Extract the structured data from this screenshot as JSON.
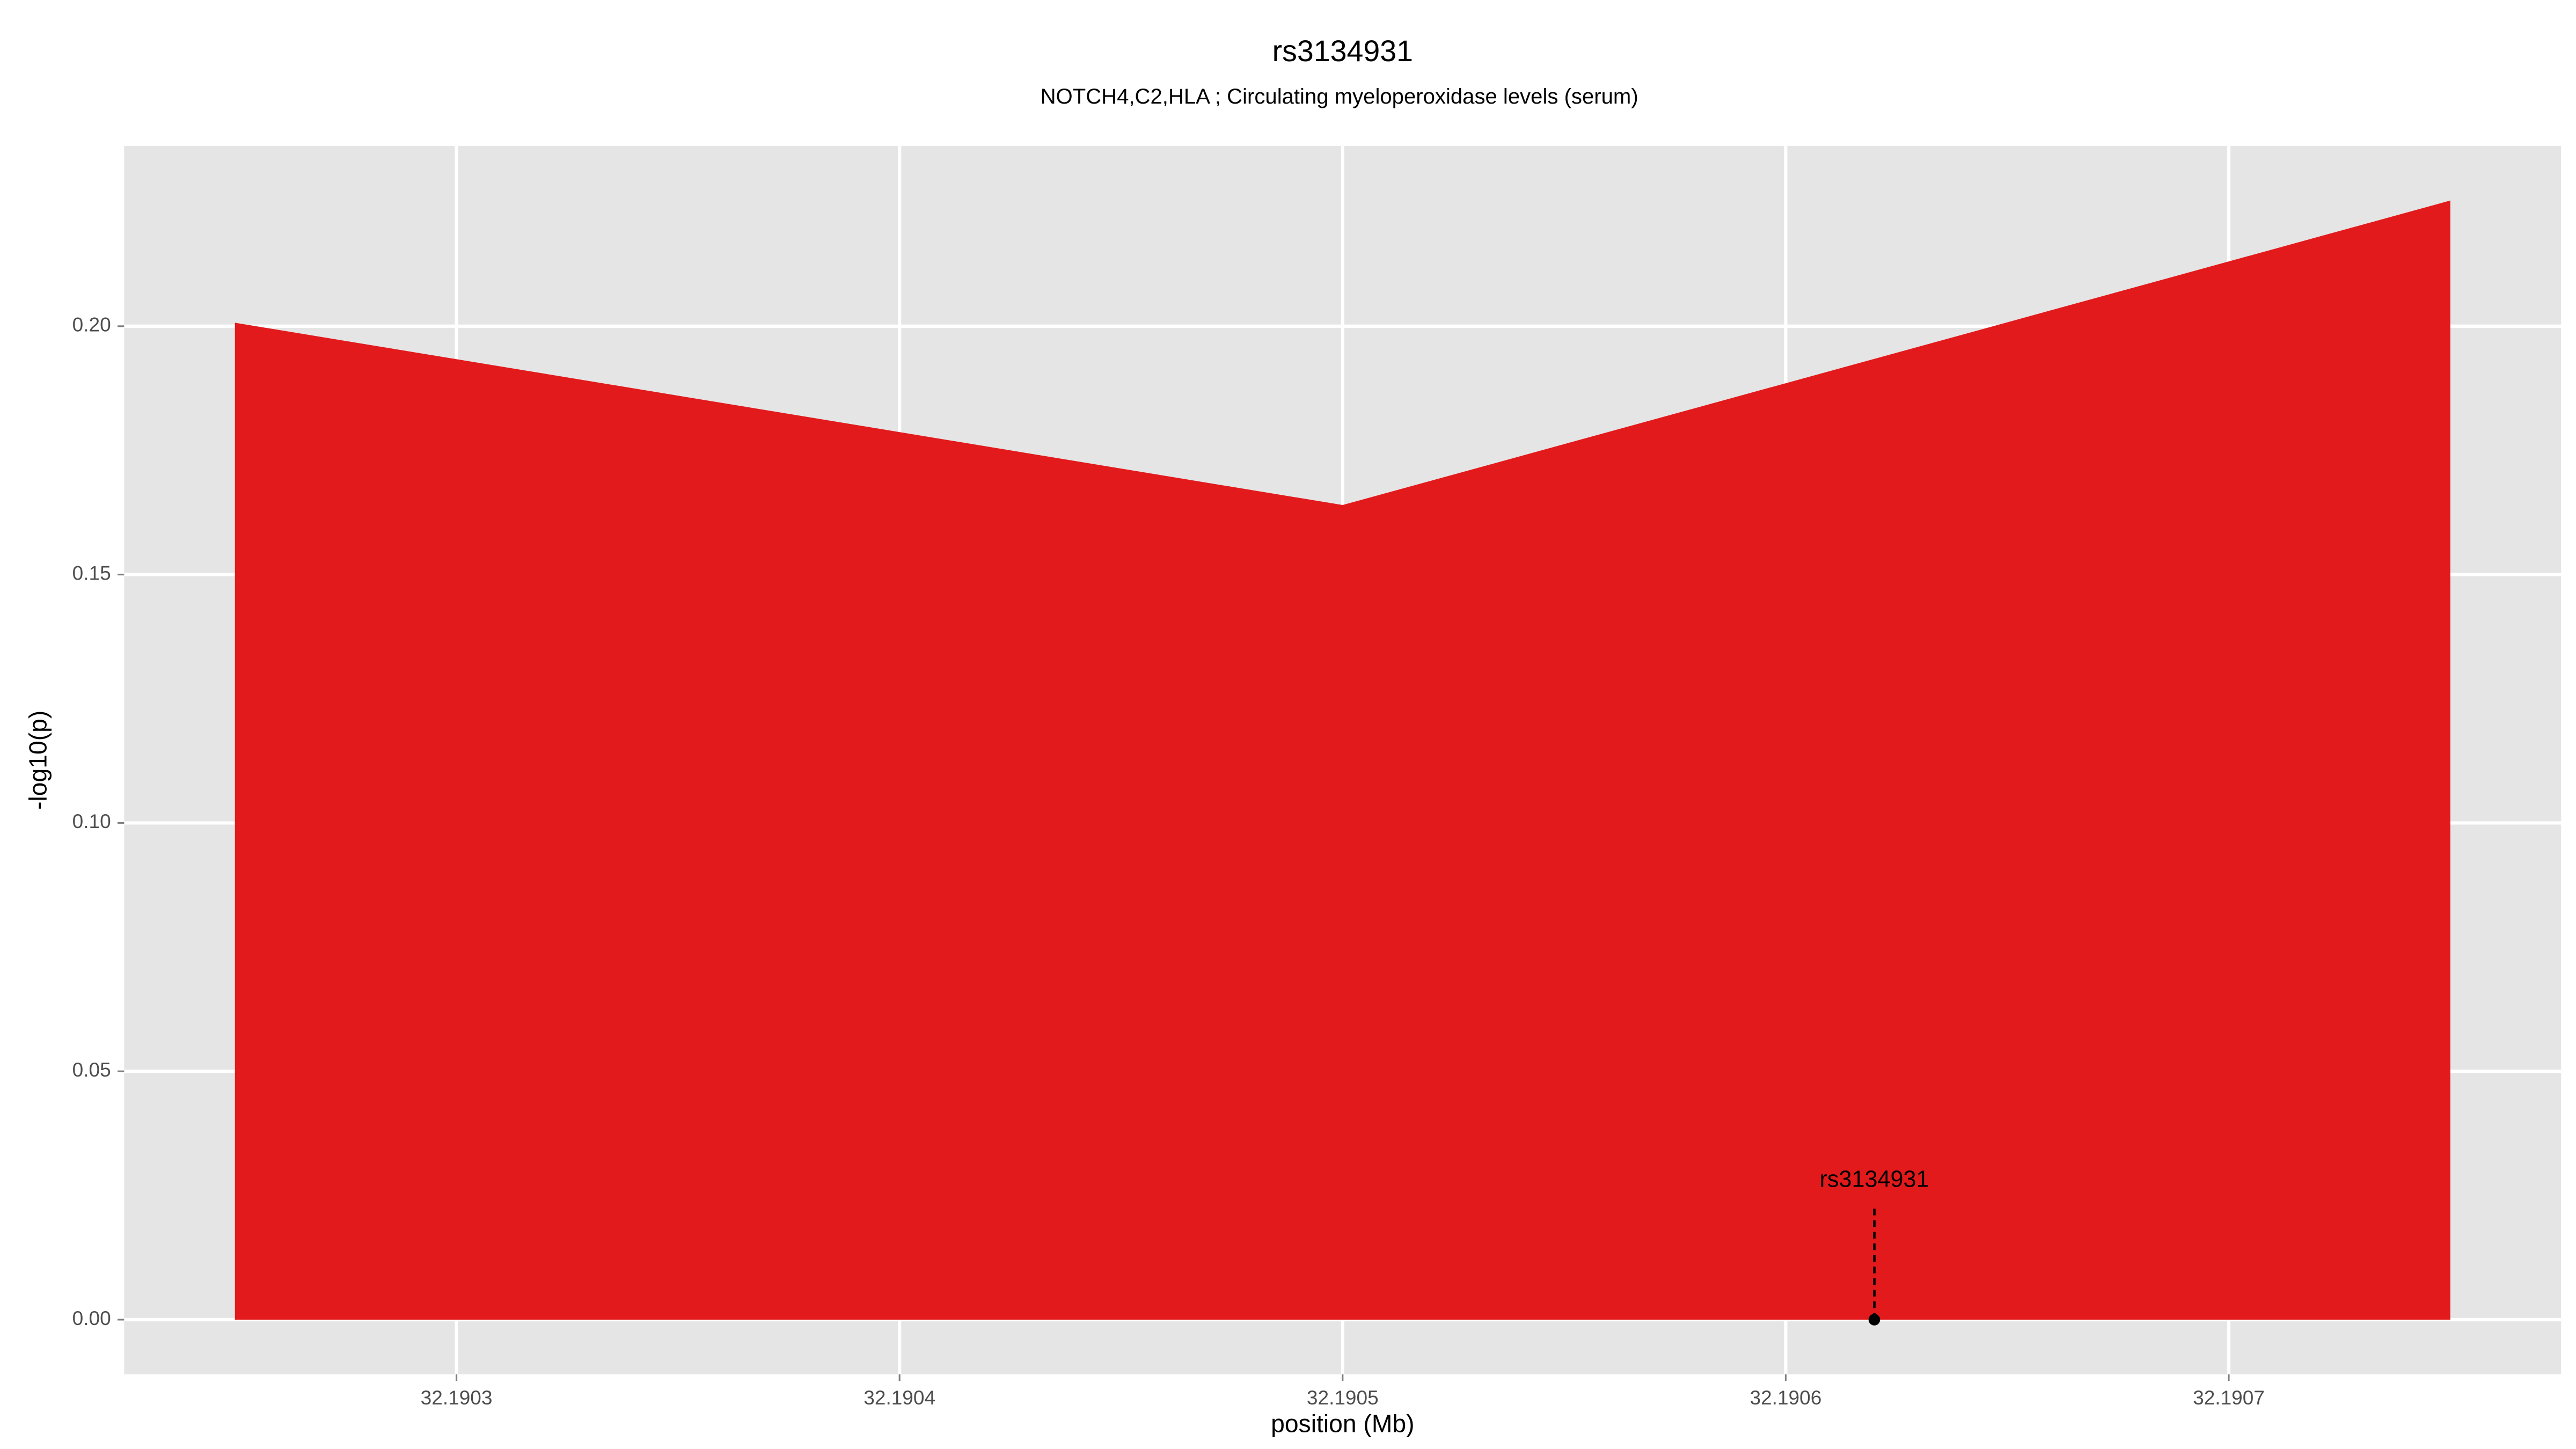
{
  "chart_data": {
    "type": "area",
    "title": "rs3134931",
    "subtitle": "NOTCH4,C2,HLA ; Circulating myeloperoxidase levels (serum)",
    "x_label": "position (Mb)",
    "y_label": "-log10(p)",
    "x": [
      32.19025,
      32.1905,
      32.19075
    ],
    "series": [
      {
        "color": "#e31a1c",
        "values": [
          0.2007,
          0.164,
          0.2253
        ]
      }
    ],
    "xlim": [
      32.190225,
      32.190775
    ],
    "ylim": [
      -0.011,
      0.2363
    ],
    "xticks": [
      32.1903,
      32.1904,
      32.1905,
      32.1906,
      32.1907
    ],
    "yticks": [
      {
        "value": 0,
        "label": "0.00"
      },
      0.05,
      {
        "value": 0.1,
        "label": "0.10"
      },
      0.15,
      {
        "value": 0.2,
        "label": "0.20"
      }
    ],
    "grid": true,
    "annotations": [
      {
        "label": "rs3134931",
        "x": 32.19062,
        "y": 0
      }
    ]
  }
}
